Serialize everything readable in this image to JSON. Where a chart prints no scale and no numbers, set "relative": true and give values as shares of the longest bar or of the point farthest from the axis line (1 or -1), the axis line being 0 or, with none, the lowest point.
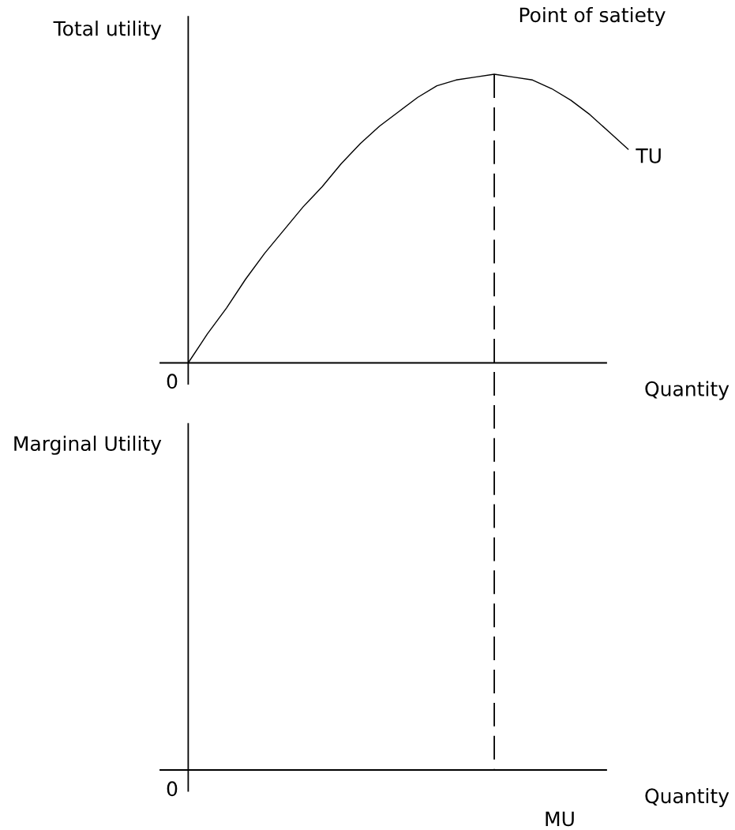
{
  "chart_data": [
    {
      "type": "line",
      "relative": true,
      "ylabel": "Total utility",
      "xlabel": "Quantity",
      "annotations": [
        "0",
        "Point of satiety"
      ],
      "categories": [
        null,
        null,
        null,
        null,
        null,
        null,
        null,
        null,
        null,
        null,
        null,
        null,
        null,
        null,
        null,
        null,
        null,
        null,
        null,
        null,
        null,
        null,
        null,
        null
      ],
      "series": [
        {
          "name": "TU",
          "color": "#000000",
          "values": [
            0,
            0.1,
            0.19,
            0.29,
            0.38,
            0.46,
            0.54,
            0.61,
            0.69,
            0.76,
            0.82,
            0.87,
            0.92,
            0.96,
            0.98,
            0.99,
            1,
            0.99,
            0.98,
            0.95,
            0.91,
            0.86,
            0.8,
            0.74
          ]
        }
      ]
    },
    {
      "type": "other",
      "ylabel": "Marginal Utility",
      "xlabel": "Quantity",
      "annotations": [
        "0",
        "MU"
      ]
    }
  ]
}
